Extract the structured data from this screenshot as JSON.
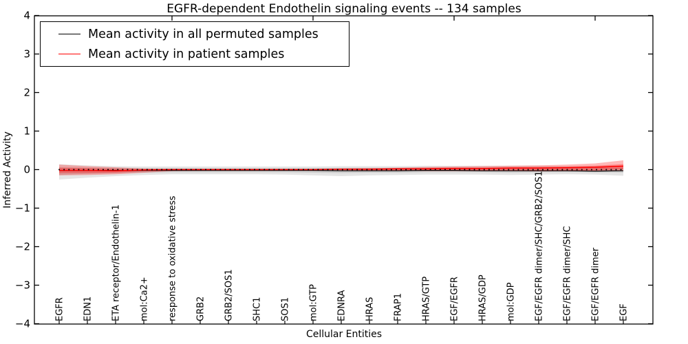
{
  "chart_data": {
    "type": "line",
    "title": "EGFR-dependent Endothelin signaling events -- 134 samples",
    "sample_count": 134,
    "xlabel": "Cellular Entities",
    "ylabel": "Inferred Activity",
    "ylim": [
      -4,
      4
    ],
    "grid": false,
    "legend_position": "upper-left-inside",
    "ytick_values": [
      4,
      3,
      2,
      1,
      0,
      -1,
      -2,
      -3,
      -4
    ],
    "ytick_labels": [
      "4",
      "3",
      "2",
      "1",
      "0",
      "−1",
      "−2",
      "−3",
      "−4"
    ],
    "top_tick_indices": [
      4,
      9,
      14,
      19
    ],
    "categories": [
      "EGFR",
      "EDN1",
      "ETA receptor/Endothelin-1",
      "mol:Ca2+",
      "response to oxidative stress",
      "GRB2",
      "GRB2/SOS1",
      "SHC1",
      "SOS1",
      "mol:GTP",
      "EDNRA",
      "HRAS",
      "FRAP1",
      "HRAS/GTP",
      "EGF/EGFR",
      "HRAS/GDP",
      "mol:GDP",
      "EGF/EGFR dimer/SHC/GRB2/SOS1",
      "EGF/EGFR dimer/SHC",
      "EGF/EGFR dimer",
      "EGF"
    ],
    "series": [
      {
        "name": "Mean activity in all permuted samples",
        "color": "#000000",
        "values": [
          -0.02,
          -0.02,
          -0.02,
          -0.02,
          -0.02,
          -0.02,
          -0.02,
          -0.02,
          -0.02,
          -0.02,
          -0.03,
          -0.03,
          -0.03,
          -0.02,
          -0.02,
          -0.03,
          -0.03,
          -0.03,
          -0.03,
          -0.04,
          -0.03
        ]
      },
      {
        "name": "Mean activity in patient samples",
        "color": "#ff0000",
        "values": [
          -0.02,
          -0.02,
          -0.03,
          -0.01,
          0.0,
          0.0,
          0.0,
          0.0,
          0.0,
          0.0,
          0.01,
          0.01,
          0.02,
          0.02,
          0.03,
          0.03,
          0.04,
          0.04,
          0.05,
          0.06,
          0.09
        ]
      }
    ],
    "bands": [
      {
        "name": "permuted-band-outer",
        "color": "rgba(0,0,0,0.10)",
        "hi": [
          0.14,
          0.11,
          0.09,
          0.08,
          0.08,
          0.08,
          0.08,
          0.08,
          0.08,
          0.08,
          0.09,
          0.09,
          0.09,
          0.1,
          0.1,
          0.1,
          0.1,
          0.1,
          0.09,
          0.09,
          0.1
        ],
        "lo": [
          -0.26,
          -0.21,
          -0.17,
          -0.14,
          -0.12,
          -0.12,
          -0.12,
          -0.12,
          -0.13,
          -0.15,
          -0.17,
          -0.15,
          -0.14,
          -0.13,
          -0.13,
          -0.13,
          -0.14,
          -0.13,
          -0.12,
          -0.13,
          -0.16
        ]
      },
      {
        "name": "permuted-band-inner",
        "color": "rgba(0,0,0,0.10)",
        "hi": [
          0.06,
          0.05,
          0.05,
          0.04,
          0.04,
          0.04,
          0.04,
          0.04,
          0.04,
          0.04,
          0.05,
          0.05,
          0.05,
          0.05,
          0.05,
          0.05,
          0.05,
          0.05,
          0.05,
          0.05,
          0.05
        ],
        "lo": [
          -0.14,
          -0.11,
          -0.09,
          -0.08,
          -0.07,
          -0.07,
          -0.07,
          -0.07,
          -0.07,
          -0.08,
          -0.09,
          -0.08,
          -0.08,
          -0.07,
          -0.07,
          -0.07,
          -0.08,
          -0.07,
          -0.07,
          -0.07,
          -0.08
        ]
      },
      {
        "name": "patient-band-outer",
        "color": "rgba(255,0,0,0.28)",
        "hi": [
          0.13,
          0.09,
          0.06,
          0.03,
          0.02,
          0.02,
          0.02,
          0.02,
          0.02,
          0.02,
          0.03,
          0.04,
          0.05,
          0.07,
          0.08,
          0.09,
          0.1,
          0.11,
          0.13,
          0.16,
          0.24
        ],
        "lo": [
          -0.15,
          -0.14,
          -0.12,
          -0.08,
          -0.04,
          -0.03,
          -0.02,
          -0.02,
          -0.02,
          -0.03,
          -0.03,
          -0.03,
          -0.03,
          -0.04,
          -0.04,
          -0.04,
          -0.04,
          -0.05,
          -0.04,
          -0.04,
          -0.03
        ]
      },
      {
        "name": "patient-band-inner",
        "color": "rgba(255,0,0,0.30)",
        "hi": [
          0.05,
          0.04,
          0.02,
          0.01,
          0.01,
          0.01,
          0.01,
          0.01,
          0.01,
          0.01,
          0.02,
          0.02,
          0.03,
          0.04,
          0.05,
          0.05,
          0.06,
          0.07,
          0.08,
          0.1,
          0.14
        ],
        "lo": [
          -0.09,
          -0.09,
          -0.08,
          -0.04,
          -0.02,
          -0.01,
          -0.01,
          -0.01,
          -0.01,
          -0.01,
          -0.01,
          -0.02,
          -0.02,
          -0.02,
          -0.02,
          -0.02,
          -0.02,
          -0.03,
          -0.02,
          -0.02,
          0.01
        ]
      }
    ],
    "zero_line": {
      "value": 0,
      "style": "dotted",
      "color": "#000000"
    }
  }
}
